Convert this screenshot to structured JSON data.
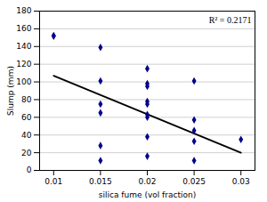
{
  "chart_data": {
    "type": "scatter",
    "x": [
      0.01,
      0.01,
      0.015,
      0.015,
      0.015,
      0.015,
      0.015,
      0.015,
      0.02,
      0.02,
      0.02,
      0.02,
      0.02,
      0.02,
      0.02,
      0.02,
      0.02,
      0.025,
      0.025,
      0.025,
      0.025,
      0.025,
      0.03
    ],
    "values": [
      152,
      152,
      139,
      101,
      75,
      65,
      28,
      11,
      115,
      98,
      95,
      78,
      75,
      63,
      60,
      38,
      16,
      101,
      57,
      45,
      33,
      11,
      35
    ],
    "color": "#00008B",
    "marker": "diamond",
    "line": {
      "x": [
        0.01,
        0.03
      ],
      "y": [
        107,
        20
      ],
      "color": "#000000"
    },
    "annotation": "R² = 0.2171",
    "xlabel": "silica fume (vol fraction)",
    "ylabel": "Slump (mm)",
    "xlim": [
      0.0085,
      0.0315
    ],
    "ylim": [
      0,
      180
    ],
    "xticks": [
      0.01,
      0.015,
      0.02,
      0.025,
      0.03
    ],
    "yticks": [
      0,
      20,
      40,
      60,
      80,
      100,
      120,
      140,
      160,
      180
    ],
    "grid": "y"
  }
}
